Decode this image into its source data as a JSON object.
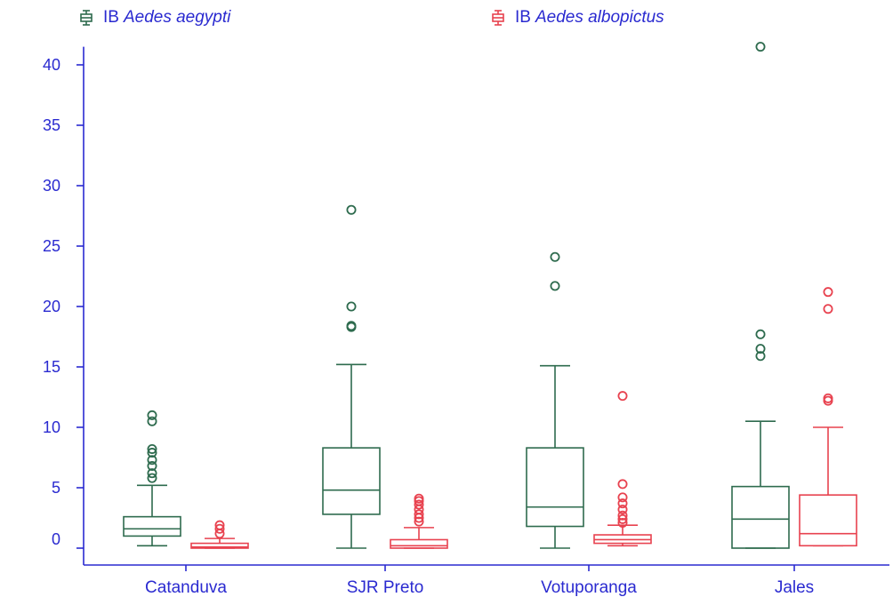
{
  "legend": {
    "items": [
      {
        "prefix": "IB",
        "species": "Aedes aegypti",
        "color": "#2e6b4e"
      },
      {
        "prefix": "IB",
        "species": "Aedes albopictus",
        "color": "#e8424f"
      }
    ]
  },
  "chart_data": {
    "type": "boxplot",
    "categories": [
      "Catanduva",
      "SJR Preto",
      "Votuporanga",
      "Jales"
    ],
    "ylim": [
      -1,
      41.5
    ],
    "yticks": [
      0,
      5,
      10,
      15,
      20,
      25,
      30,
      35,
      40
    ],
    "ytick_labels": [
      "0",
      "5",
      "10",
      "15",
      "20",
      "25",
      "30",
      "35",
      "40"
    ],
    "xlabel": "",
    "ylabel": "",
    "grid": false,
    "legend_position": "top",
    "axis_color": "#2a2ad0",
    "series": [
      {
        "name": "IB Aedes aegypti",
        "color": "#2e6b4e",
        "boxes": [
          {
            "whisker_low": 0.2,
            "q1": 1.0,
            "median": 1.6,
            "q3": 2.6,
            "whisker_high": 5.2,
            "outliers": [
              5.8,
              6.2,
              6.8,
              7.3,
              7.9,
              8.2,
              10.5,
              11.0
            ]
          },
          {
            "whisker_low": 0.0,
            "q1": 2.8,
            "median": 4.8,
            "q3": 8.3,
            "whisker_high": 15.2,
            "outliers": [
              18.3,
              18.4,
              20.0,
              28.0
            ]
          },
          {
            "whisker_low": 0.0,
            "q1": 1.8,
            "median": 3.4,
            "q3": 8.3,
            "whisker_high": 15.1,
            "outliers": [
              21.7,
              24.1
            ]
          },
          {
            "whisker_low": 0.0,
            "q1": 0.0,
            "median": 2.4,
            "q3": 5.1,
            "whisker_high": 10.5,
            "outliers": [
              15.9,
              16.5,
              17.7,
              41.5
            ]
          }
        ]
      },
      {
        "name": "IB Aedes albopictus",
        "color": "#e8424f",
        "boxes": [
          {
            "whisker_low": 0.0,
            "q1": 0.0,
            "median": 0.1,
            "q3": 0.4,
            "whisker_high": 0.8,
            "outliers": [
              1.2,
              1.6,
              1.9
            ]
          },
          {
            "whisker_low": 0.0,
            "q1": 0.0,
            "median": 0.2,
            "q3": 0.7,
            "whisker_high": 1.7,
            "outliers": [
              2.2,
              2.5,
              2.8,
              3.2,
              3.6,
              3.9,
              4.1
            ]
          },
          {
            "whisker_low": 0.2,
            "q1": 0.4,
            "median": 0.7,
            "q3": 1.1,
            "whisker_high": 1.9,
            "outliers": [
              2.1,
              2.4,
              2.7,
              3.2,
              3.7,
              4.2,
              5.3,
              12.6
            ]
          },
          {
            "whisker_low": 0.2,
            "q1": 0.2,
            "median": 1.2,
            "q3": 4.4,
            "whisker_high": 10.0,
            "outliers": [
              12.2,
              12.4,
              19.8,
              21.2
            ]
          }
        ]
      }
    ]
  }
}
